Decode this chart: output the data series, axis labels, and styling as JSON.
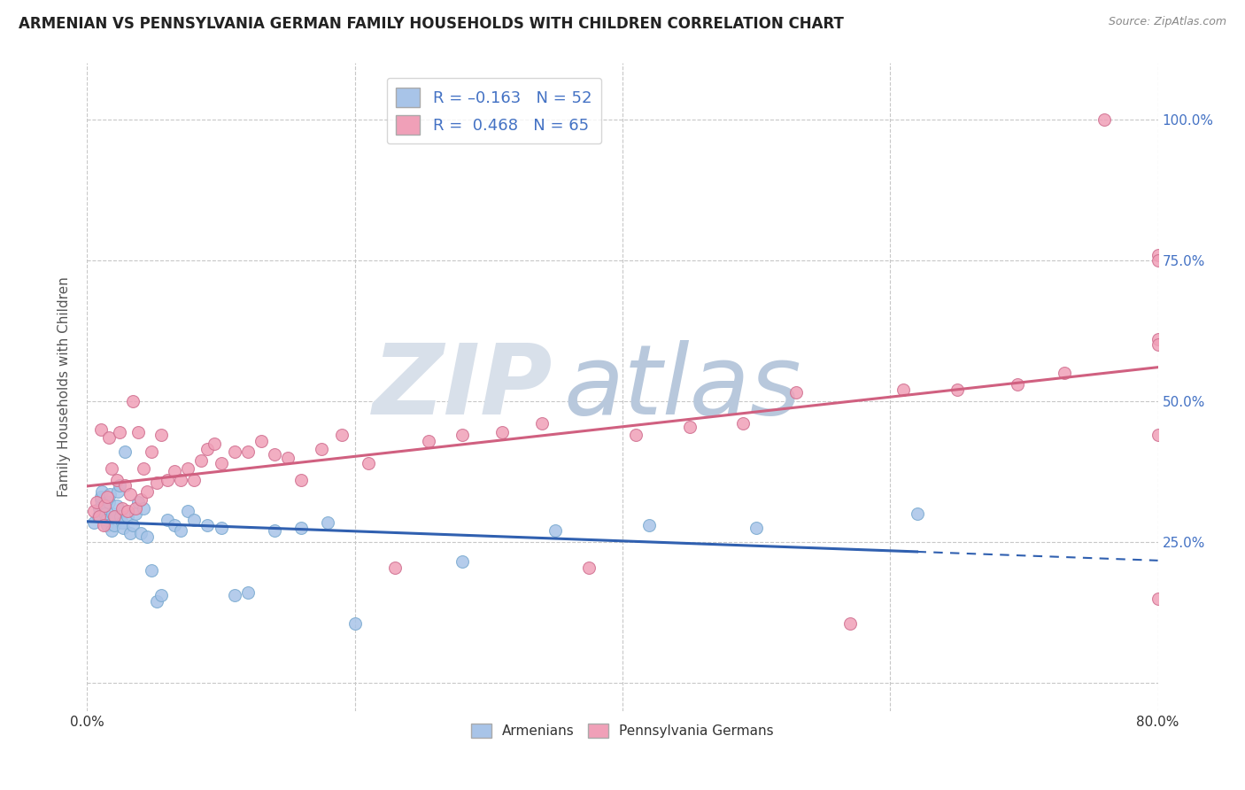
{
  "title": "ARMENIAN VS PENNSYLVANIA GERMAN FAMILY HOUSEHOLDS WITH CHILDREN CORRELATION CHART",
  "source": "Source: ZipAtlas.com",
  "ylabel": "Family Households with Children",
  "xlim": [
    0.0,
    0.8
  ],
  "ylim": [
    -0.05,
    1.1
  ],
  "ytick_positions": [
    0.0,
    0.25,
    0.5,
    0.75,
    1.0
  ],
  "yticklabels": [
    "",
    "25.0%",
    "50.0%",
    "75.0%",
    "100.0%"
  ],
  "grid_color": "#c8c8c8",
  "background_color": "#ffffff",
  "watermark_zip": "ZIP",
  "watermark_atlas": "atlas",
  "watermark_color_zip": "#d8e0ea",
  "watermark_color_atlas": "#b8c8dc",
  "armenian_color": "#a8c4e8",
  "armenian_edge_color": "#7aaad0",
  "armenian_line_color": "#3060b0",
  "pa_german_color": "#f0a0b8",
  "pa_german_edge_color": "#d07090",
  "pa_german_line_color": "#d06080",
  "armenian_x": [
    0.005,
    0.008,
    0.009,
    0.01,
    0.01,
    0.011,
    0.012,
    0.013,
    0.014,
    0.015,
    0.016,
    0.017,
    0.018,
    0.019,
    0.02,
    0.021,
    0.022,
    0.023,
    0.024,
    0.025,
    0.026,
    0.027,
    0.028,
    0.03,
    0.032,
    0.034,
    0.036,
    0.038,
    0.04,
    0.042,
    0.045,
    0.048,
    0.052,
    0.055,
    0.06,
    0.065,
    0.07,
    0.075,
    0.08,
    0.09,
    0.1,
    0.11,
    0.12,
    0.14,
    0.16,
    0.18,
    0.2,
    0.28,
    0.35,
    0.42,
    0.5,
    0.62
  ],
  "armenian_y": [
    0.285,
    0.295,
    0.31,
    0.325,
    0.33,
    0.34,
    0.31,
    0.3,
    0.29,
    0.28,
    0.32,
    0.335,
    0.27,
    0.3,
    0.28,
    0.295,
    0.315,
    0.34,
    0.35,
    0.295,
    0.285,
    0.275,
    0.41,
    0.295,
    0.265,
    0.28,
    0.3,
    0.32,
    0.265,
    0.31,
    0.26,
    0.2,
    0.145,
    0.155,
    0.29,
    0.28,
    0.27,
    0.305,
    0.29,
    0.28,
    0.275,
    0.155,
    0.16,
    0.27,
    0.275,
    0.285,
    0.105,
    0.215,
    0.27,
    0.28,
    0.275,
    0.3
  ],
  "pa_german_x": [
    0.005,
    0.007,
    0.009,
    0.01,
    0.012,
    0.013,
    0.015,
    0.016,
    0.018,
    0.02,
    0.022,
    0.024,
    0.026,
    0.028,
    0.03,
    0.032,
    0.034,
    0.036,
    0.038,
    0.04,
    0.042,
    0.045,
    0.048,
    0.052,
    0.055,
    0.06,
    0.065,
    0.07,
    0.075,
    0.08,
    0.085,
    0.09,
    0.095,
    0.1,
    0.11,
    0.12,
    0.13,
    0.14,
    0.15,
    0.16,
    0.175,
    0.19,
    0.21,
    0.23,
    0.255,
    0.28,
    0.31,
    0.34,
    0.375,
    0.41,
    0.45,
    0.49,
    0.53,
    0.57,
    0.61,
    0.65,
    0.695,
    0.73,
    0.76,
    0.8,
    0.8,
    0.8,
    0.8,
    0.8,
    0.8
  ],
  "pa_german_y": [
    0.305,
    0.32,
    0.295,
    0.45,
    0.28,
    0.315,
    0.33,
    0.435,
    0.38,
    0.295,
    0.36,
    0.445,
    0.31,
    0.35,
    0.305,
    0.335,
    0.5,
    0.31,
    0.445,
    0.325,
    0.38,
    0.34,
    0.41,
    0.355,
    0.44,
    0.36,
    0.375,
    0.36,
    0.38,
    0.36,
    0.395,
    0.415,
    0.425,
    0.39,
    0.41,
    0.41,
    0.43,
    0.405,
    0.4,
    0.36,
    0.415,
    0.44,
    0.39,
    0.205,
    0.43,
    0.44,
    0.445,
    0.46,
    0.205,
    0.44,
    0.455,
    0.46,
    0.515,
    0.105,
    0.52,
    0.52,
    0.53,
    0.55,
    1.0,
    0.76,
    0.61,
    0.75,
    0.6,
    0.15,
    0.44
  ]
}
